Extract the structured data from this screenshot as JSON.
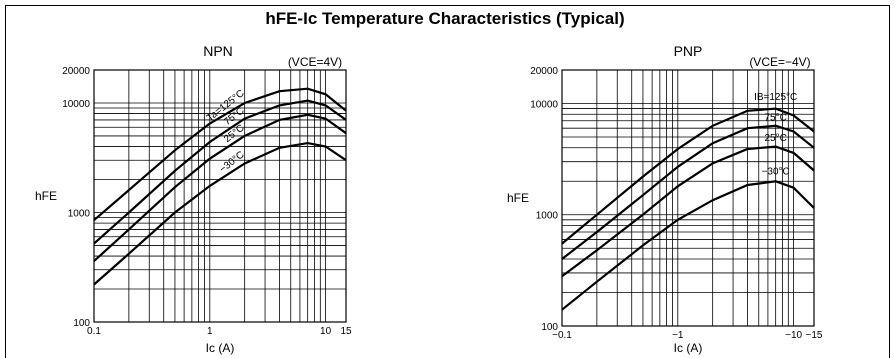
{
  "title": "hFE-Ic Temperature Characteristics (Typical)",
  "chart_data": [
    {
      "type": "line",
      "title": "NPN",
      "condition": "(VCE=4V)",
      "xlabel": "Ic (A)",
      "ylabel": "hFE",
      "xscale": "log",
      "yscale": "log",
      "xlim": [
        0.1,
        15
      ],
      "ylim": [
        100,
        20000
      ],
      "xticks": [
        {
          "v": 0.1,
          "label": "0.1"
        },
        {
          "v": 1,
          "label": "1"
        },
        {
          "v": 10,
          "label": "10"
        },
        {
          "v": 15,
          "label": "15"
        }
      ],
      "yticks": [
        {
          "v": 100,
          "label": "100"
        },
        {
          "v": 1000,
          "label": "1000"
        },
        {
          "v": 10000,
          "label": "10000"
        },
        {
          "v": 20000,
          "label": "20000"
        }
      ],
      "grid": true,
      "series": [
        {
          "name": "Ta=125°C",
          "x": [
            0.1,
            0.2,
            0.5,
            1,
            2,
            4,
            7,
            10,
            15
          ],
          "y": [
            850,
            1600,
            3700,
            6500,
            10000,
            12800,
            13500,
            12000,
            8500
          ]
        },
        {
          "name": "75°C",
          "x": [
            0.1,
            0.2,
            0.5,
            1,
            2,
            4,
            7,
            10,
            15
          ],
          "y": [
            520,
            1000,
            2400,
            4400,
            7200,
            9500,
            10500,
            9500,
            7000
          ]
        },
        {
          "name": "25°C",
          "x": [
            0.1,
            0.2,
            0.5,
            1,
            2,
            4,
            7,
            10,
            15
          ],
          "y": [
            360,
            700,
            1700,
            3100,
            5000,
            7000,
            7800,
            7200,
            5300
          ]
        },
        {
          "name": "−30°C",
          "x": [
            0.1,
            0.2,
            0.5,
            1,
            2,
            4,
            7,
            10,
            15
          ],
          "y": [
            220,
            420,
            1000,
            1750,
            2800,
            3900,
            4300,
            4000,
            3000
          ]
        }
      ]
    },
    {
      "type": "line",
      "title": "PNP",
      "condition": "(VCE=−4V)",
      "xlabel": "Ic (A)",
      "ylabel": "hFE",
      "xscale": "log",
      "yscale": "log",
      "xlim": [
        -0.1,
        -15
      ],
      "ylim": [
        100,
        20000
      ],
      "xticks": [
        {
          "v": -0.1,
          "label": "−0.1"
        },
        {
          "v": -1,
          "label": "−1"
        },
        {
          "v": -10,
          "label": "−10"
        },
        {
          "v": -15,
          "label": "−15"
        }
      ],
      "yticks": [
        {
          "v": 100,
          "label": "100"
        },
        {
          "v": 1000,
          "label": "1000"
        },
        {
          "v": 10000,
          "label": "10000"
        },
        {
          "v": 20000,
          "label": "20000"
        }
      ],
      "grid": true,
      "series": [
        {
          "name": "IB=125°C",
          "x": [
            -0.1,
            -0.2,
            -0.5,
            -1,
            -2,
            -4,
            -7,
            -10,
            -15
          ],
          "y": [
            550,
            1000,
            2200,
            3900,
            6300,
            8600,
            9000,
            7800,
            5600
          ]
        },
        {
          "name": "75°C",
          "x": [
            -0.1,
            -0.2,
            -0.5,
            -1,
            -2,
            -4,
            -7,
            -10,
            -15
          ],
          "y": [
            400,
            700,
            1500,
            2700,
            4400,
            6000,
            6300,
            5600,
            4000
          ]
        },
        {
          "name": "25°C",
          "x": [
            -0.1,
            -0.2,
            -0.5,
            -1,
            -2,
            -4,
            -7,
            -10,
            -15
          ],
          "y": [
            280,
            480,
            1000,
            1800,
            2900,
            3900,
            4100,
            3600,
            2500
          ]
        },
        {
          "name": "−30°C",
          "x": [
            -0.1,
            -0.2,
            -0.5,
            -1,
            -2,
            -4,
            -7,
            -10,
            -15
          ],
          "y": [
            140,
            250,
            530,
            900,
            1350,
            1850,
            2000,
            1750,
            1150
          ]
        }
      ]
    }
  ]
}
